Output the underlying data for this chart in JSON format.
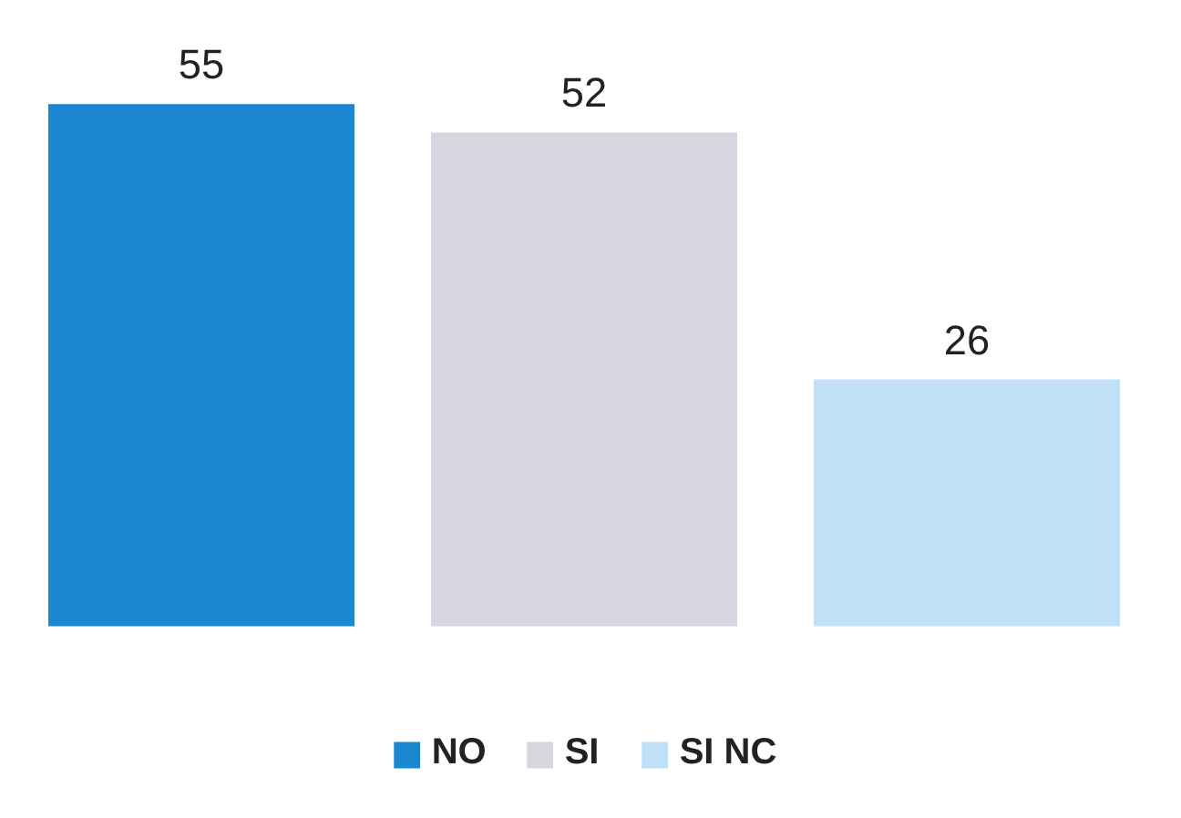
{
  "chart_data": {
    "type": "bar",
    "categories": [
      null,
      null,
      null
    ],
    "stacked": true,
    "series": [
      {
        "name": "NO",
        "color": "#1b87d0",
        "values": [
          55,
          null,
          null
        ]
      },
      {
        "name": "SI",
        "color": "#d8d5de",
        "values": [
          null,
          52,
          null
        ]
      },
      {
        "name": "SI NC",
        "color": "#c0e0f8",
        "values": [
          null,
          null,
          26
        ]
      }
    ],
    "data_labels": true,
    "legend": "bottom",
    "grid": false
  }
}
